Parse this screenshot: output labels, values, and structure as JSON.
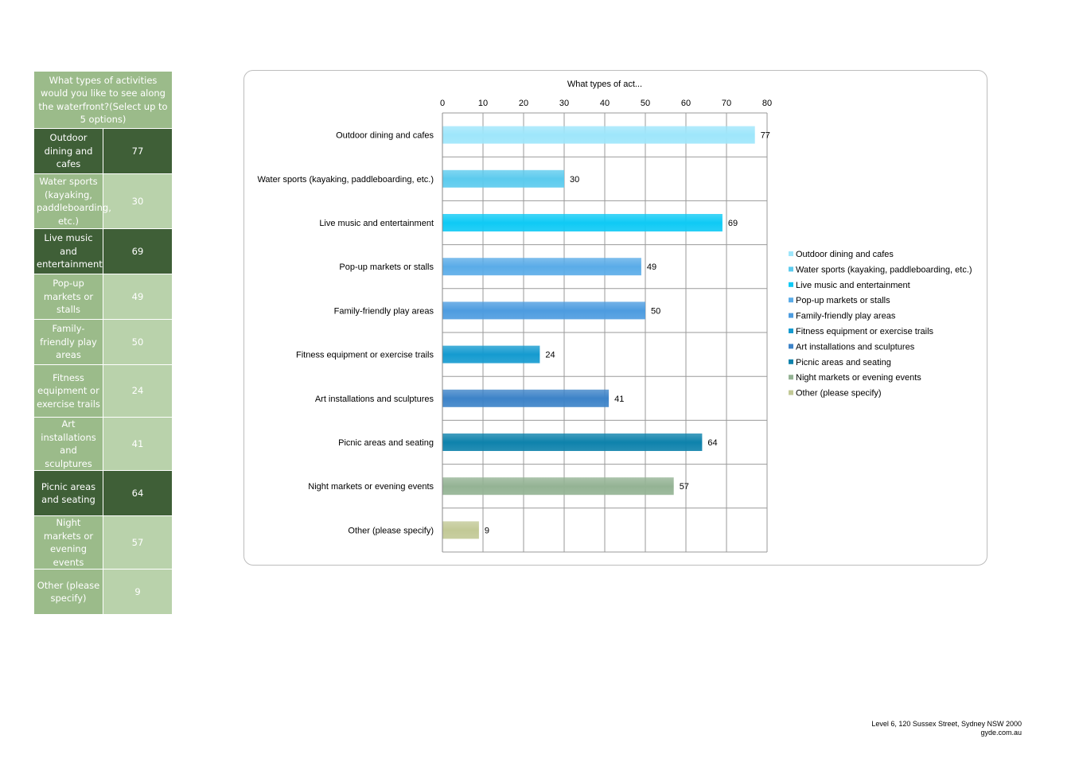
{
  "table": {
    "header": "What types of activities would you like to see along the waterfront?(Select up to 5 options)",
    "rows": [
      {
        "label": "Outdoor dining and cafes",
        "value": "77"
      },
      {
        "label": "Water sports (kayaking, paddleboarding, etc.)",
        "value": "30"
      },
      {
        "label": "Live music and entertainment",
        "value": "69"
      },
      {
        "label": "Pop-up markets or stalls",
        "value": "49"
      },
      {
        "label": "Family-friendly play areas",
        "value": "50"
      },
      {
        "label": "Fitness equipment or exercise trails",
        "value": "24"
      },
      {
        "label": "Art installations and sculptures",
        "value": "41"
      },
      {
        "label": "Picnic areas and seating",
        "value": "64"
      },
      {
        "label": "Night markets or evening events",
        "value": "57"
      },
      {
        "label": "Other (please specify)",
        "value": "9"
      }
    ]
  },
  "chart_data": {
    "type": "bar",
    "orientation": "horizontal",
    "title": "What types of act...",
    "categories": [
      "Outdoor dining and cafes",
      "Water sports (kayaking, paddleboarding, etc.)",
      "Live music and entertainment",
      "Pop-up markets or stalls",
      "Family-friendly play areas",
      "Fitness equipment or exercise trails",
      "Art installations and sculptures",
      "Picnic areas and seating",
      "Night markets or evening events",
      "Other (please specify)"
    ],
    "values": [
      77,
      30,
      69,
      49,
      50,
      24,
      41,
      64,
      57,
      9
    ],
    "colors": [
      "#9ee6fb",
      "#5ccbee",
      "#0fcaf5",
      "#5aace8",
      "#4d9ce0",
      "#159bd0",
      "#3d83c8",
      "#0e82ac",
      "#94b394",
      "#c2c996"
    ],
    "xlim": [
      0,
      80
    ],
    "xticks": [
      "0",
      "10",
      "20",
      "30",
      "40",
      "50",
      "60",
      "70",
      "80"
    ],
    "grid": true,
    "legend_position": "right",
    "xaxis_position": "top"
  },
  "footer": {
    "address": "Level 6, 120 Sussex Street, Sydney NSW 2000",
    "website": "gyde.com.au"
  }
}
